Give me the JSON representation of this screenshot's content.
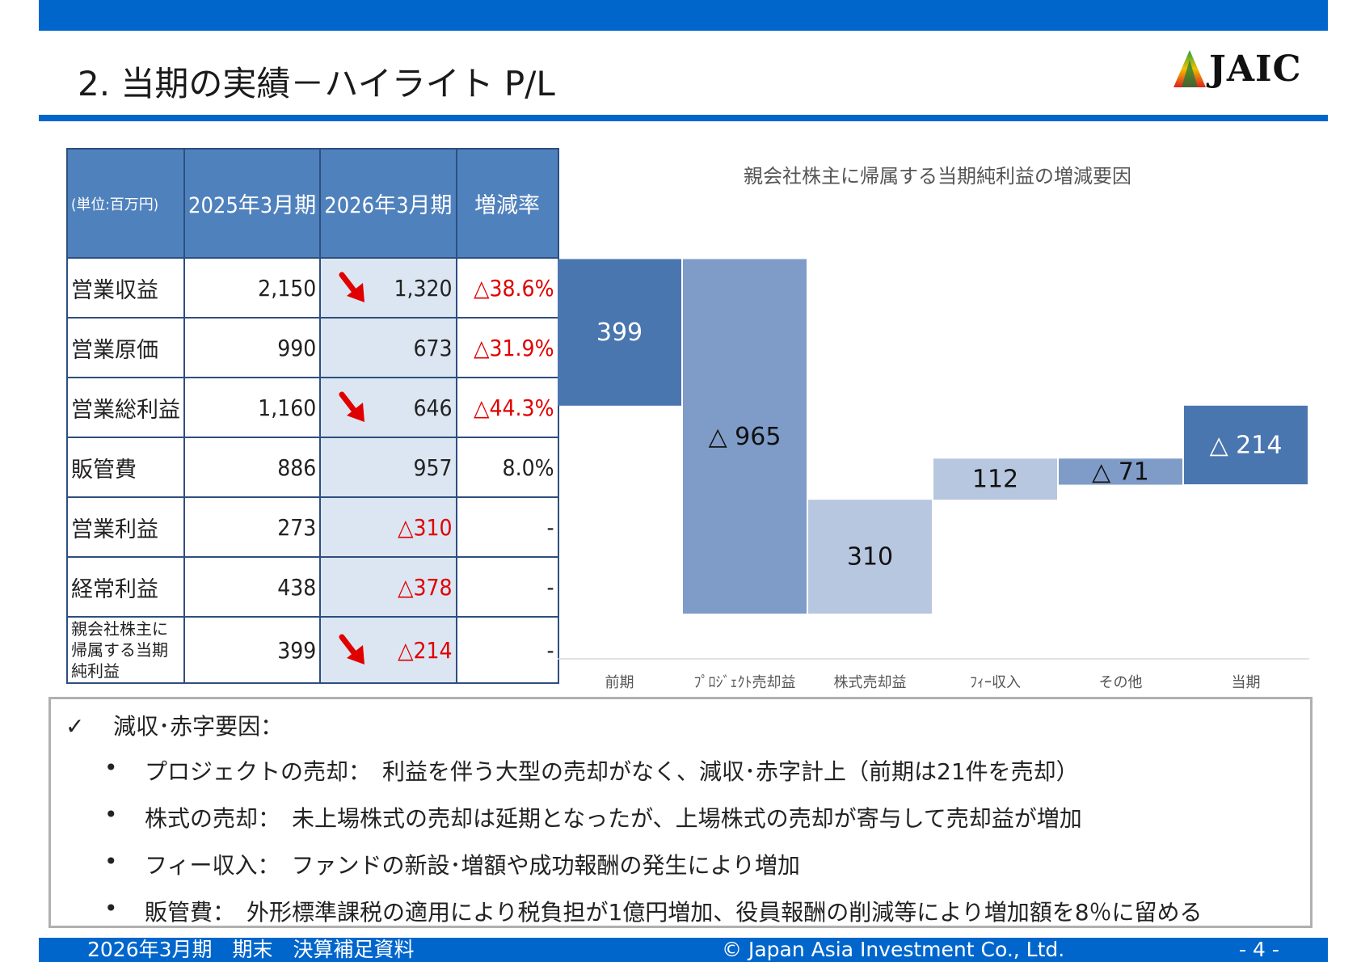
{
  "header": {
    "title": "2. 当期の実績－ハイライト P/L",
    "logo_text": "JAIC"
  },
  "table": {
    "headers": [
      "(単位:百万円)",
      "2025年3月期",
      "2026年3月期",
      "増減率"
    ],
    "rows": [
      {
        "label": "営業収益",
        "prev": "2,150",
        "cur": "1,320",
        "rate": "△38.6%",
        "down_arrow": true
      },
      {
        "label": "営業原価",
        "prev": "990",
        "cur": "673",
        "rate": "△31.9%",
        "down_arrow": false
      },
      {
        "label": "営業総利益",
        "prev": "1,160",
        "cur": "646",
        "rate": "△44.3%",
        "down_arrow": true
      },
      {
        "label": "販管費",
        "prev": "886",
        "cur": "957",
        "rate": "8.0%",
        "down_arrow": false
      },
      {
        "label": "営業利益",
        "prev": "273",
        "cur": "△310",
        "rate": "-",
        "down_arrow": false
      },
      {
        "label": "経常利益",
        "prev": "438",
        "cur": "△378",
        "rate": "-",
        "down_arrow": false
      },
      {
        "label": "親会社株主に帰属する当期純利益",
        "prev": "399",
        "cur": "△214",
        "rate": "-",
        "down_arrow": true
      }
    ]
  },
  "chart_data": {
    "type": "bar",
    "title": "親会社株主に帰属する当期純利益の増減要因",
    "categories": [
      "前期",
      "ﾌﾟﾛｼﾞｪｸﾄ売却益",
      "株式売却益",
      "ﾌｨｰ収入",
      "その他",
      "当期"
    ],
    "values": [
      399,
      -965,
      310,
      112,
      -71,
      -214
    ],
    "value_labels": [
      "399",
      "△ 965",
      "310",
      "112",
      "△ 71",
      "△ 214"
    ],
    "colors": [
      "#4a76b0",
      "#7f9cc8",
      "#b8c7e0",
      "#b8c7e0",
      "#7f9cc8",
      "#4a76b0"
    ],
    "label_colors": [
      "#ffffff",
      "#111111",
      "#111111",
      "#111111",
      "#111111",
      "#ffffff"
    ],
    "ylim": [
      -700,
      400
    ]
  },
  "notes": {
    "heading": "減収･赤字要因：",
    "check_symbol": "✓",
    "bullet_symbol": "•",
    "items": [
      "プロジェクトの売却：　利益を伴う大型の売却がなく、減収･赤字計上（前期は21件を売却）",
      "株式の売却：　未上場株式の売却は延期となったが、上場株式の売却が寄与して売却益が増加",
      "フィー収入：　ファンドの新設･増額や成功報酬の発生により増加",
      "販管費：　外形標準課税の適用により税負担が1億円増加、役員報酬の削減等により増加額を8％に留める"
    ]
  },
  "footer": {
    "left": "2026年3月期　期末　決算補足資料",
    "center": "© Japan Asia Investment Co., Ltd.",
    "page": "- 4 -"
  }
}
